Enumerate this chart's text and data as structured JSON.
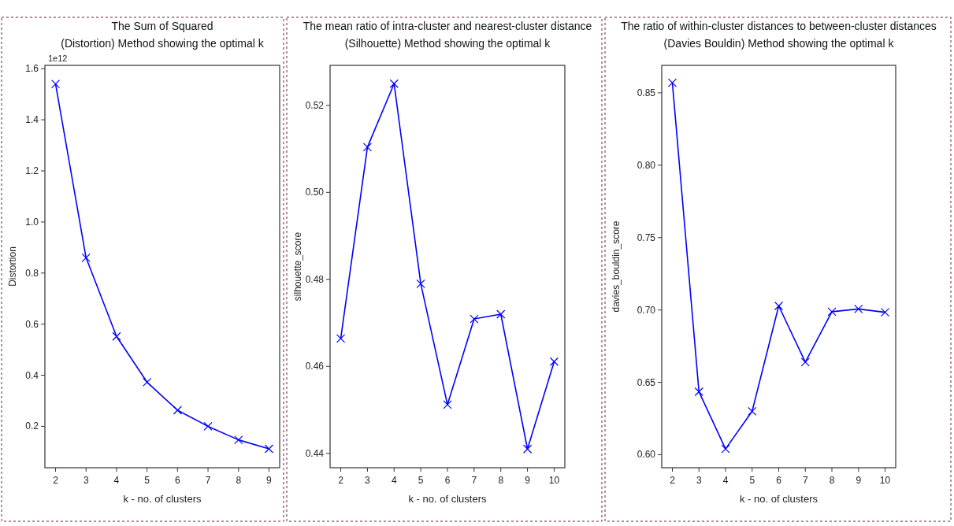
{
  "chart_data": [
    {
      "type": "line",
      "title": "The Sum of Squared\n(Distortion) Method showing the optimal k",
      "xlabel": "k - no. of clusters",
      "ylabel": "Distortion",
      "annotations": [
        "1e12"
      ],
      "x": [
        2,
        3,
        4,
        5,
        6,
        7,
        8,
        9
      ],
      "series": [
        {
          "color": "#0000ff",
          "values": [
            1.54,
            0.86,
            0.552,
            0.373,
            0.263,
            0.2,
            0.147,
            0.112
          ]
        }
      ],
      "xlim": [
        1.65,
        9.35
      ],
      "xticks": [
        2,
        3,
        4,
        5,
        6,
        7,
        8,
        9
      ],
      "ylim": [
        0.038,
        1.613
      ],
      "yticks": [
        0.2,
        0.4,
        0.6,
        0.8,
        {
          "value": 1,
          "label": "1.0"
        },
        1.2,
        1.4,
        1.6
      ],
      "marker": "cross",
      "line_style": "solid"
    },
    {
      "type": "line",
      "title": "The mean ratio of intra-cluster and nearest-cluster distance\n(Silhouette) Method showing the optimal k",
      "xlabel": "k - no. of clusters",
      "ylabel": "silhouette_score",
      "x": [
        2,
        3,
        4,
        5,
        6,
        7,
        8,
        9,
        10
      ],
      "series": [
        {
          "color": "#0000ff",
          "values": [
            0.4664,
            0.5104,
            0.525,
            0.479,
            0.4512,
            0.4709,
            0.472,
            0.441,
            0.4611
          ]
        }
      ],
      "xlim": [
        1.6,
        10.4
      ],
      "xticks": [
        2,
        3,
        4,
        5,
        6,
        7,
        8,
        9,
        10
      ],
      "ylim": [
        0.4367,
        0.5292
      ],
      "yticks": [
        0.44,
        0.46,
        0.48,
        {
          "value": 0.5,
          "label": "0.50"
        },
        0.52
      ],
      "marker": "cross",
      "line_style": "solid"
    },
    {
      "type": "line",
      "title": "The ratio of within-cluster distances to between-cluster distances\n(Davies Bouldin) Method showing the optimal k",
      "xlabel": "k - no. of clusters",
      "ylabel": "davies_bouldin_score",
      "x": [
        2,
        3,
        4,
        5,
        6,
        7,
        8,
        9,
        10
      ],
      "series": [
        {
          "color": "#0000ff",
          "values": [
            0.857,
            0.6435,
            0.604,
            0.63,
            0.7028,
            0.664,
            0.6988,
            0.7007,
            0.6984
          ]
        }
      ],
      "xlim": [
        1.6,
        10.4
      ],
      "xticks": [
        2,
        3,
        4,
        5,
        6,
        7,
        8,
        9,
        10
      ],
      "ylim": [
        0.591,
        0.869
      ],
      "yticks": [
        {
          "value": 0.6,
          "label": "0.60"
        },
        0.65,
        {
          "value": 0.7,
          "label": "0.70"
        },
        0.75,
        {
          "value": 0.8,
          "label": "0.80"
        },
        0.85
      ],
      "marker": "cross",
      "line_style": "solid"
    }
  ]
}
